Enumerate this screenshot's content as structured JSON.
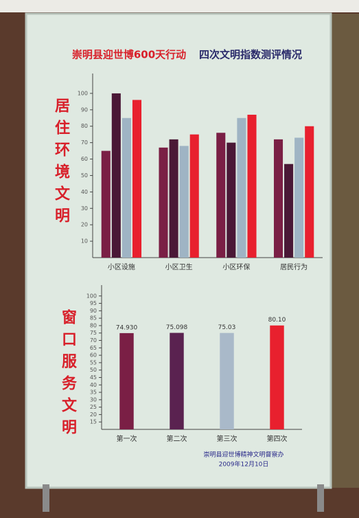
{
  "header": {
    "title": "崇明县迎世博600天行动",
    "subtitle": "四次文明指数测评情况"
  },
  "footer": {
    "org": "崇明县迎世博精神文明督察办",
    "date": "2009年12月10日"
  },
  "chart_data": [
    {
      "type": "bar",
      "ylabel": "居住环境文明",
      "categories": [
        "小区设施",
        "小区卫生",
        "小区环保",
        "居民行为"
      ],
      "series": [
        {
          "color": "#7a1f45",
          "values": [
            65,
            67,
            76,
            72
          ]
        },
        {
          "color": "#4a1836",
          "values": [
            100,
            72,
            70,
            57
          ]
        },
        {
          "color": "#9fb4c4",
          "values": [
            85,
            68,
            85,
            73
          ]
        },
        {
          "color": "#e8202e",
          "values": [
            96,
            75,
            87,
            80
          ]
        }
      ],
      "ylim": [
        0,
        110
      ],
      "yticks": [
        10,
        20,
        30,
        40,
        50,
        60,
        70,
        80,
        90,
        100
      ]
    },
    {
      "type": "bar",
      "ylabel": "窗口服务文明",
      "categories": [
        "第一次",
        "第二次",
        "第三次",
        "第四次"
      ],
      "colors": [
        "#7a1f45",
        "#5a2250",
        "#a9b9c9",
        "#e8202e"
      ],
      "values": [
        74.93,
        75.098,
        75.03,
        80.1
      ],
      "value_labels": [
        "74.930",
        "75.098",
        "75.03",
        "80.10"
      ],
      "ylim": [
        10,
        105
      ],
      "yticks": [
        15,
        20,
        25,
        30,
        35,
        40,
        45,
        50,
        55,
        60,
        65,
        70,
        75,
        80,
        85,
        90,
        95,
        100
      ]
    }
  ]
}
